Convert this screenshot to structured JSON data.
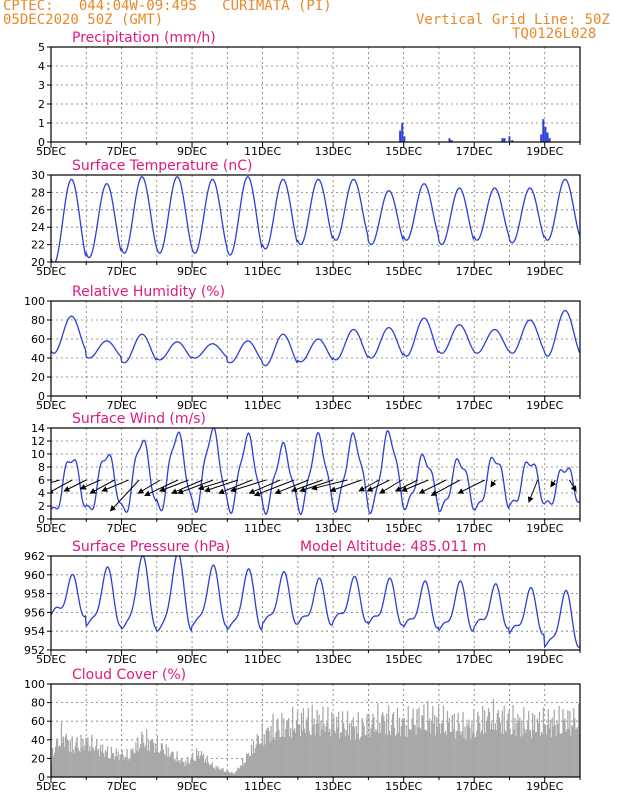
{
  "header": {
    "line1": "CPTEC:   044:04W-09:49S   CURIMATA (PI)",
    "line2": "05DEC2020 50Z (GMT)",
    "right1": "Vertical Grid Line: 50Z",
    "right2": "TQ0126L028"
  },
  "colors": {
    "line": "#2b3fd6",
    "title": "#e0197d",
    "header": "#e8892a",
    "cloud": "#a8a8a8",
    "grid": "#555555"
  },
  "x_ticks": [
    "5DEC",
    "7DEC",
    "9DEC",
    "11DEC",
    "13DEC",
    "15DEC",
    "17DEC",
    "19DEC"
  ],
  "x_range": [
    0,
    15
  ],
  "chart_data": [
    {
      "type": "bar",
      "title": "Precipitation (mm/h)",
      "ylim": [
        0,
        5
      ],
      "yticks": [
        "0",
        "1",
        "2",
        "3",
        "4",
        "5"
      ],
      "x_days": [
        9.9,
        9.96,
        10.02,
        11.3,
        11.36,
        12.8,
        12.86,
        13.0,
        13.08,
        13.9,
        13.96,
        14.02,
        14.08,
        14.14
      ],
      "values": [
        0.6,
        1.0,
        0.3,
        0.2,
        0.1,
        0.2,
        0.2,
        0.3,
        0.1,
        0.4,
        1.2,
        0.8,
        0.5,
        0.2
      ]
    },
    {
      "type": "line",
      "title": "Surface Temperature (nC)",
      "ylim": [
        20,
        30
      ],
      "yticks": [
        "20",
        "22",
        "24",
        "26",
        "28",
        "30"
      ],
      "min": [
        19.8,
        20.5,
        21,
        21,
        21,
        20.8,
        21.5,
        22,
        22.5,
        22,
        22.5,
        22,
        22.5,
        22.2,
        22.5
      ],
      "max": [
        29.5,
        29,
        29.8,
        29.8,
        29.5,
        29.8,
        29.5,
        29.5,
        29.5,
        28.2,
        29,
        28.5,
        28.5,
        28.5,
        29.5
      ]
    },
    {
      "type": "line",
      "title": "Relative Humidity (%)",
      "ylim": [
        0,
        100
      ],
      "yticks": [
        "0",
        "20",
        "40",
        "60",
        "80",
        "100"
      ],
      "min": [
        45,
        40,
        35,
        38,
        40,
        35,
        32,
        36,
        38,
        40,
        42,
        45,
        45,
        45,
        42
      ],
      "max": [
        84,
        58,
        65,
        57,
        55,
        58,
        65,
        60,
        70,
        72,
        82,
        75,
        70,
        80,
        90
      ]
    },
    {
      "type": "line",
      "title": "Surface Wind (m/s)",
      "ylim": [
        0,
        14
      ],
      "yticks": [
        "0",
        "2",
        "4",
        "6",
        "8",
        "10",
        "12",
        "14"
      ],
      "min": [
        1,
        1.2,
        1,
        1.5,
        1.5,
        1.5,
        1.5,
        1.5,
        1.8,
        1.5,
        2,
        1.5,
        1.5,
        2,
        2
      ],
      "max": [
        9.5,
        10,
        12,
        13,
        13.5,
        12.5,
        11,
        12.5,
        12.5,
        13,
        9.5,
        9,
        9.5,
        9,
        8
      ],
      "vectors": [
        [
          0.25,
          -1.4,
          -0.4
        ],
        [
          0.6,
          -1.1,
          -0.6
        ],
        [
          1.0,
          -1.0,
          -0.5
        ],
        [
          1.4,
          -0.9,
          -0.4
        ],
        [
          1.8,
          -1.1,
          -0.6
        ],
        [
          2.2,
          -1.2,
          -0.5
        ],
        [
          2.5,
          -1.3,
          -1.4
        ],
        [
          3.1,
          -1.0,
          -0.6
        ],
        [
          3.6,
          -1.5,
          -0.7
        ],
        [
          3.9,
          -1.3,
          -0.5
        ],
        [
          4.3,
          -1.4,
          -0.6
        ],
        [
          4.6,
          -1.6,
          -0.6
        ],
        [
          5.0,
          -1.3,
          -0.4
        ],
        [
          5.3,
          -1.5,
          -0.5
        ],
        [
          5.7,
          -1.5,
          -0.6
        ],
        [
          6.1,
          -1.6,
          -0.5
        ],
        [
          6.5,
          -1.4,
          -0.6
        ],
        [
          6.9,
          -1.8,
          -0.7
        ],
        [
          7.3,
          -1.5,
          -0.6
        ],
        [
          7.7,
          -1.4,
          -0.5
        ],
        [
          8.0,
          -1.5,
          -0.5
        ],
        [
          8.4,
          -1.6,
          -0.4
        ],
        [
          8.8,
          -1.4,
          -0.5
        ],
        [
          9.3,
          -0.9,
          -0.5
        ],
        [
          9.6,
          -1.0,
          -0.5
        ],
        [
          9.95,
          -1.0,
          -0.6
        ],
        [
          10.4,
          -1.0,
          -0.5
        ],
        [
          10.7,
          -1.2,
          -0.5
        ],
        [
          11.2,
          -1.2,
          -0.6
        ],
        [
          11.6,
          -1.3,
          -0.7
        ],
        [
          12.3,
          -1.2,
          -0.6
        ],
        [
          12.6,
          -0.2,
          -0.3
        ],
        [
          13.8,
          -0.4,
          -1.0
        ],
        [
          14.3,
          -0.2,
          -0.3
        ],
        [
          14.7,
          0.3,
          -0.5
        ]
      ]
    },
    {
      "type": "line",
      "title": "Surface Pressure (hPa)",
      "subtitle": "Model Altitude: 485.011 m",
      "ylim": [
        952,
        962
      ],
      "yticks": [
        "952",
        "954",
        "956",
        "958",
        "960",
        "962"
      ],
      "min": [
        955.5,
        954.2,
        953.8,
        953.5,
        954.2,
        953.8,
        954.5,
        954.5,
        954.8,
        954.5,
        954.2,
        953.8,
        954.2,
        953.5,
        952.0
      ],
      "max": [
        959.2,
        960.0,
        961.2,
        961.5,
        960.2,
        959.8,
        959.5,
        958.8,
        959.0,
        958.8,
        958.5,
        958.5,
        958.2,
        957.8,
        957.5
      ]
    },
    {
      "type": "bar",
      "title": "Cloud Cover (%)",
      "ylim": [
        0,
        100
      ],
      "yticks": [
        "0",
        "20",
        "40",
        "60",
        "80",
        "100"
      ],
      "profile_days": [
        0,
        0.3,
        0.6,
        1.0,
        1.6,
        2.2,
        2.6,
        3.2,
        3.8,
        4.2,
        4.6,
        5.2,
        5.5,
        5.9,
        6.3,
        6.8,
        7.2,
        7.6,
        8.2,
        8.8,
        9.4,
        10.0,
        10.6,
        11.2,
        11.8,
        12.4,
        13.0,
        13.6,
        14.2,
        15.0
      ],
      "profile_values": [
        30,
        60,
        45,
        50,
        35,
        30,
        55,
        40,
        20,
        35,
        15,
        5,
        25,
        55,
        70,
        75,
        80,
        80,
        75,
        70,
        82,
        75,
        85,
        78,
        70,
        85,
        80,
        75,
        78,
        80
      ]
    }
  ]
}
